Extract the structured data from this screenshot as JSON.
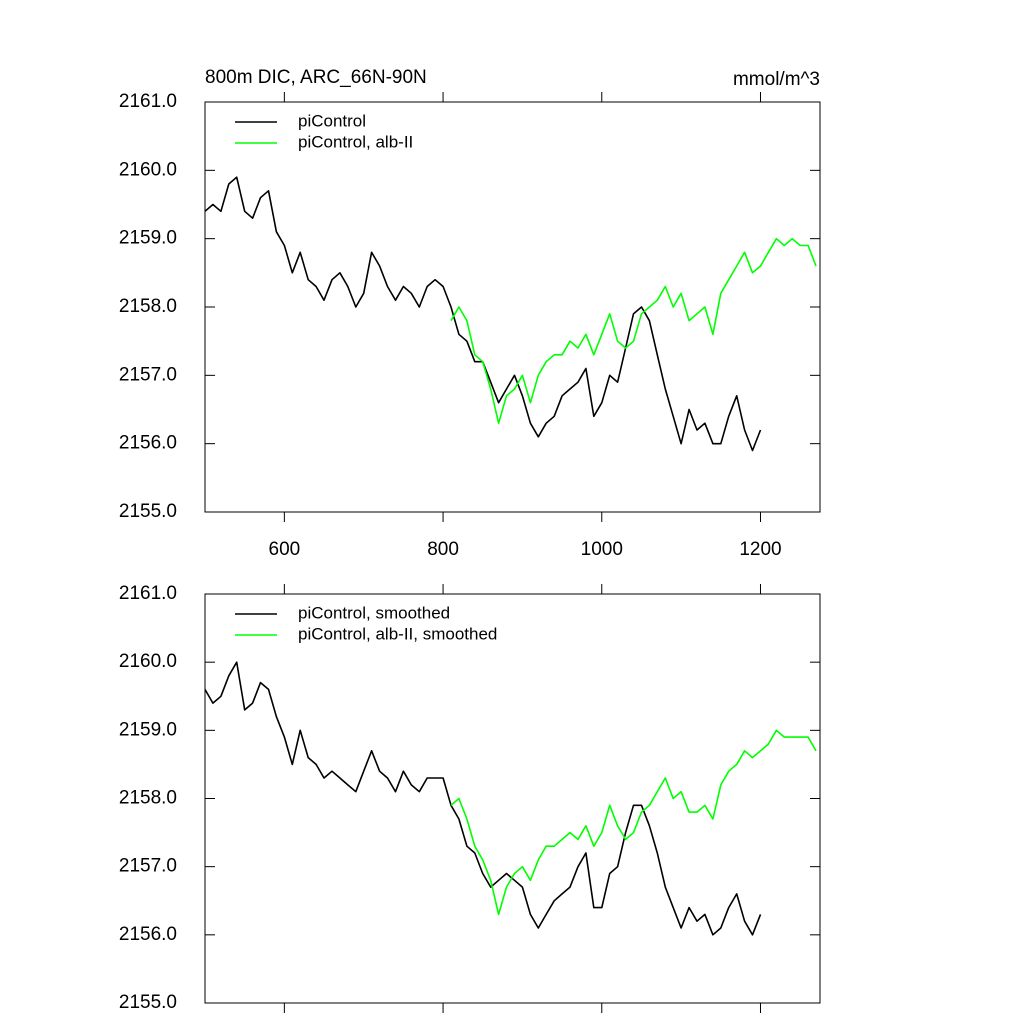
{
  "chart_data": [
    {
      "type": "line",
      "title": "800m DIC, ARC_66N-90N",
      "units": "mmol/m^3",
      "xlim": [
        500,
        1275
      ],
      "xticks": [
        600,
        800,
        1000,
        1200
      ],
      "show_xtick_labels": true,
      "ylim": [
        2155,
        2161
      ],
      "yticks": [
        {
          "value": 2155,
          "label": "2155.0"
        },
        {
          "value": 2156,
          "label": "2156.0"
        },
        {
          "value": 2157,
          "label": "2157.0"
        },
        {
          "value": 2158,
          "label": "2158.0"
        },
        {
          "value": 2159,
          "label": "2159.0"
        },
        {
          "value": 2160,
          "label": "2160.0"
        },
        {
          "value": 2161,
          "label": "2161.0"
        }
      ],
      "legend": "top-left",
      "x": [
        500,
        510,
        520,
        530,
        540,
        550,
        560,
        570,
        580,
        590,
        600,
        610,
        620,
        630,
        640,
        650,
        660,
        670,
        680,
        690,
        700,
        710,
        720,
        730,
        740,
        750,
        760,
        770,
        780,
        790,
        800,
        810,
        820,
        830,
        840,
        850,
        860,
        870,
        880,
        890,
        900,
        910,
        920,
        930,
        940,
        950,
        960,
        970,
        980,
        990,
        1000,
        1010,
        1020,
        1030,
        1040,
        1050,
        1060,
        1070,
        1080,
        1090,
        1100,
        1110,
        1120,
        1130,
        1140,
        1150,
        1160,
        1170,
        1180,
        1190,
        1200,
        1210,
        1220,
        1230,
        1240,
        1250,
        1260,
        1270
      ],
      "series": [
        {
          "name": "piControl",
          "color": "#000000",
          "values": [
            2159.4,
            2159.5,
            2159.4,
            2159.8,
            2159.9,
            2159.4,
            2159.3,
            2159.6,
            2159.7,
            2159.1,
            2158.9,
            2158.5,
            2158.8,
            2158.4,
            2158.3,
            2158.1,
            2158.4,
            2158.5,
            2158.3,
            2158.0,
            2158.2,
            2158.8,
            2158.6,
            2158.3,
            2158.1,
            2158.3,
            2158.2,
            2158.0,
            2158.3,
            2158.4,
            2158.3,
            2158.0,
            2157.6,
            2157.5,
            2157.2,
            2157.2,
            2156.9,
            2156.6,
            2156.8,
            2157.0,
            2156.7,
            2156.3,
            2156.1,
            2156.3,
            2156.4,
            2156.7,
            2156.8,
            2156.9,
            2157.1,
            2156.4,
            2156.6,
            2157.0,
            2156.9,
            2157.4,
            2157.9,
            2158.0,
            2157.8,
            2157.3,
            2156.8,
            2156.4,
            2156.0,
            2156.5,
            2156.2,
            2156.3,
            2156.0,
            2156.0,
            2156.4,
            2156.7,
            2156.2,
            2155.9,
            2156.2,
            null,
            null,
            null,
            null,
            null,
            null,
            null
          ]
        },
        {
          "name": "piControl, alb-II",
          "color": "#00ff00",
          "values": [
            null,
            null,
            null,
            null,
            null,
            null,
            null,
            null,
            null,
            null,
            null,
            null,
            null,
            null,
            null,
            null,
            null,
            null,
            null,
            null,
            null,
            null,
            null,
            null,
            null,
            null,
            null,
            null,
            null,
            null,
            null,
            2157.8,
            2158.0,
            2157.8,
            2157.3,
            2157.2,
            2156.8,
            2156.3,
            2156.7,
            2156.8,
            2157.0,
            2156.6,
            2157.0,
            2157.2,
            2157.3,
            2157.3,
            2157.5,
            2157.4,
            2157.6,
            2157.3,
            2157.6,
            2157.9,
            2157.5,
            2157.4,
            2157.5,
            2157.9,
            2158.0,
            2158.1,
            2158.3,
            2158.0,
            2158.2,
            2157.8,
            2157.9,
            2158.0,
            2157.6,
            2158.2,
            2158.4,
            2158.6,
            2158.8,
            2158.5,
            2158.6,
            2158.8,
            2159.0,
            2158.9,
            2159.0,
            2158.9,
            2158.9,
            2158.6
          ]
        }
      ]
    },
    {
      "type": "line",
      "xlim": [
        500,
        1275
      ],
      "xticks": [
        600,
        800,
        1000,
        1200
      ],
      "show_xtick_labels": false,
      "ylim": [
        2155,
        2161
      ],
      "yticks": [
        {
          "value": 2155,
          "label": "2155.0"
        },
        {
          "value": 2156,
          "label": "2156.0"
        },
        {
          "value": 2157,
          "label": "2157.0"
        },
        {
          "value": 2158,
          "label": "2158.0"
        },
        {
          "value": 2159,
          "label": "2159.0"
        },
        {
          "value": 2160,
          "label": "2160.0"
        },
        {
          "value": 2161,
          "label": "2161.0"
        }
      ],
      "legend": "top-left",
      "x": [
        500,
        510,
        520,
        530,
        540,
        550,
        560,
        570,
        580,
        590,
        600,
        610,
        620,
        630,
        640,
        650,
        660,
        670,
        680,
        690,
        700,
        710,
        720,
        730,
        740,
        750,
        760,
        770,
        780,
        790,
        800,
        810,
        820,
        830,
        840,
        850,
        860,
        870,
        880,
        890,
        900,
        910,
        920,
        930,
        940,
        950,
        960,
        970,
        980,
        990,
        1000,
        1010,
        1020,
        1030,
        1040,
        1050,
        1060,
        1070,
        1080,
        1090,
        1100,
        1110,
        1120,
        1130,
        1140,
        1150,
        1160,
        1170,
        1180,
        1190,
        1200,
        1210,
        1220,
        1230,
        1240,
        1250,
        1260,
        1270
      ],
      "series": [
        {
          "name": "piControl, smoothed",
          "color": "#000000",
          "values": [
            2159.6,
            2159.4,
            2159.5,
            2159.8,
            2160.0,
            2159.3,
            2159.4,
            2159.7,
            2159.6,
            2159.2,
            2158.9,
            2158.5,
            2159.0,
            2158.6,
            2158.5,
            2158.3,
            2158.4,
            2158.3,
            2158.2,
            2158.1,
            2158.4,
            2158.7,
            2158.4,
            2158.3,
            2158.1,
            2158.4,
            2158.2,
            2158.1,
            2158.3,
            2158.3,
            2158.3,
            2157.9,
            2157.7,
            2157.3,
            2157.2,
            2156.9,
            2156.7,
            2156.8,
            2156.9,
            2156.8,
            2156.7,
            2156.3,
            2156.1,
            2156.3,
            2156.5,
            2156.6,
            2156.7,
            2157.0,
            2157.2,
            2156.4,
            2156.4,
            2156.9,
            2157.0,
            2157.5,
            2157.9,
            2157.9,
            2157.6,
            2157.2,
            2156.7,
            2156.4,
            2156.1,
            2156.4,
            2156.2,
            2156.3,
            2156.0,
            2156.1,
            2156.4,
            2156.6,
            2156.2,
            2156.0,
            2156.3,
            null,
            null,
            null,
            null,
            null,
            null,
            null
          ]
        },
        {
          "name": "piControl, alb-II, smoothed",
          "color": "#00ff00",
          "values": [
            null,
            null,
            null,
            null,
            null,
            null,
            null,
            null,
            null,
            null,
            null,
            null,
            null,
            null,
            null,
            null,
            null,
            null,
            null,
            null,
            null,
            null,
            null,
            null,
            null,
            null,
            null,
            null,
            null,
            null,
            null,
            2157.9,
            2158.0,
            2157.7,
            2157.3,
            2157.1,
            2156.8,
            2156.3,
            2156.7,
            2156.9,
            2157.0,
            2156.8,
            2157.1,
            2157.3,
            2157.3,
            2157.4,
            2157.5,
            2157.4,
            2157.6,
            2157.3,
            2157.5,
            2157.9,
            2157.6,
            2157.4,
            2157.5,
            2157.8,
            2157.9,
            2158.1,
            2158.3,
            2158.0,
            2158.1,
            2157.8,
            2157.8,
            2157.9,
            2157.7,
            2158.2,
            2158.4,
            2158.5,
            2158.7,
            2158.6,
            2158.7,
            2158.8,
            2159.0,
            2158.9,
            2158.9,
            2158.9,
            2158.9,
            2158.7
          ]
        }
      ]
    }
  ]
}
